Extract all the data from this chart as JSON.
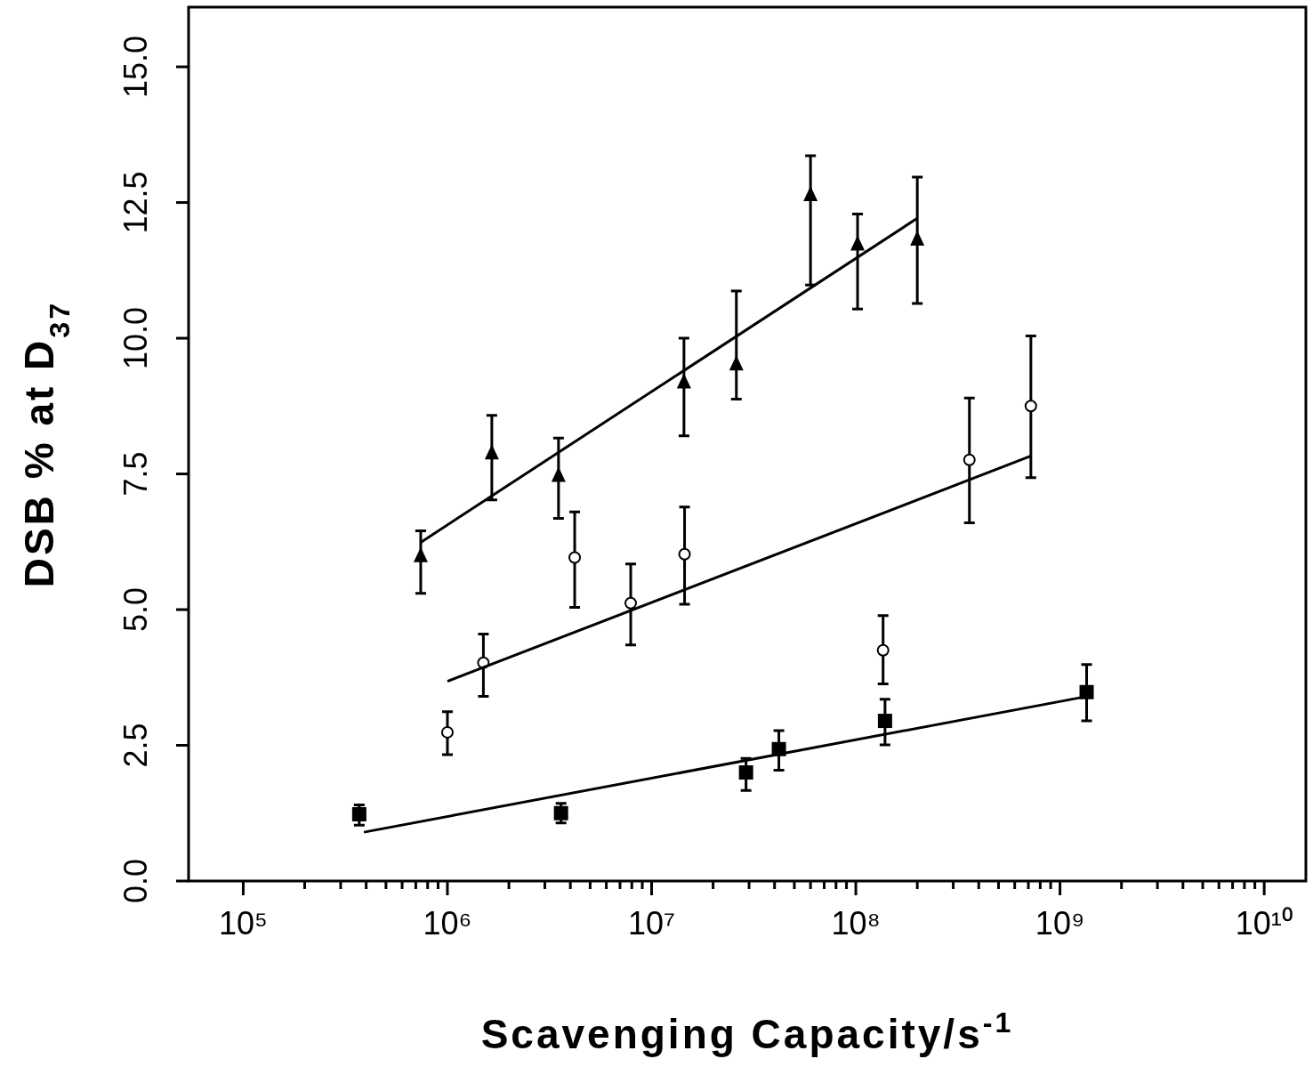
{
  "chart_data": {
    "type": "scatter",
    "xlabel": "Scavenging Capacity/s$^{-1}$",
    "ylabel": "DSB % at D$_{37}$",
    "log": "x",
    "grid": false,
    "xlim": [
      54000,
      16000000000
    ],
    "ylim": [
      0,
      16.1
    ],
    "xticks": [
      {
        "value": 100000,
        "label": "10⁵"
      },
      {
        "value": 200000,
        "label": null
      },
      {
        "value": 300000,
        "label": null
      },
      {
        "value": 400000,
        "label": null
      },
      {
        "value": 500000,
        "label": null
      },
      {
        "value": 600000,
        "label": null
      },
      {
        "value": 700000,
        "label": null
      },
      {
        "value": 800000,
        "label": null
      },
      {
        "value": 900000,
        "label": null
      },
      {
        "value": 1000000,
        "label": "10⁶"
      },
      {
        "value": 2000000,
        "label": null
      },
      {
        "value": 3000000,
        "label": null
      },
      {
        "value": 4000000,
        "label": null
      },
      {
        "value": 5000000,
        "label": null
      },
      {
        "value": 6000000,
        "label": null
      },
      {
        "value": 7000000,
        "label": null
      },
      {
        "value": 8000000,
        "label": null
      },
      {
        "value": 9000000,
        "label": null
      },
      {
        "value": 10000000,
        "label": "10⁷"
      },
      {
        "value": 20000000,
        "label": null
      },
      {
        "value": 30000000,
        "label": null
      },
      {
        "value": 40000000,
        "label": null
      },
      {
        "value": 50000000,
        "label": null
      },
      {
        "value": 60000000,
        "label": null
      },
      {
        "value": 70000000,
        "label": null
      },
      {
        "value": 80000000,
        "label": null
      },
      {
        "value": 90000000,
        "label": null
      },
      {
        "value": 100000000,
        "label": "10⁸"
      },
      {
        "value": 200000000,
        "label": null
      },
      {
        "value": 300000000,
        "label": null
      },
      {
        "value": 400000000,
        "label": null
      },
      {
        "value": 500000000,
        "label": null
      },
      {
        "value": 600000000,
        "label": null
      },
      {
        "value": 700000000,
        "label": null
      },
      {
        "value": 800000000,
        "label": null
      },
      {
        "value": 900000000,
        "label": null
      },
      {
        "value": 1000000000,
        "label": "10⁹"
      },
      {
        "value": 2000000000,
        "label": null
      },
      {
        "value": 3000000000,
        "label": null
      },
      {
        "value": 4000000000,
        "label": null
      },
      {
        "value": 5000000000,
        "label": null
      },
      {
        "value": 6000000000,
        "label": null
      },
      {
        "value": 7000000000,
        "label": null
      },
      {
        "value": 8000000000,
        "label": null
      },
      {
        "value": 9000000000,
        "label": null
      },
      {
        "value": 10000000000,
        "label": "10¹⁰"
      }
    ],
    "yticks": [
      {
        "value": 0,
        "label": "0.0"
      },
      {
        "value": 2.5,
        "label": "2.5"
      },
      {
        "value": 5,
        "label": "5.0"
      },
      {
        "value": 7.5,
        "label": "7.5"
      },
      {
        "value": 10,
        "label": "10.0"
      },
      {
        "value": 12.5,
        "label": "12.5"
      },
      {
        "value": 15,
        "label": "15.0"
      }
    ],
    "series": [
      {
        "marker": "triangle",
        "color": "#000000",
        "x": [
          740000,
          1650000,
          3500000,
          14400000,
          26000000,
          60000000,
          102000000,
          200000000
        ],
        "values": [
          5.99,
          7.88,
          7.47,
          9.19,
          9.52,
          12.64,
          11.73,
          11.82
        ],
        "errors": [
          [
            5.3,
            6.45
          ],
          [
            7.02,
            8.58
          ],
          [
            6.68,
            8.16
          ],
          [
            8.2,
            10.0
          ],
          [
            8.88,
            10.87
          ],
          [
            10.98,
            13.36
          ],
          [
            10.54,
            12.29
          ],
          [
            10.64,
            12.97
          ]
        ]
      },
      {
        "marker": "circle",
        "color": "#000000",
        "x": [
          1000000,
          1500000,
          4200000,
          7900000,
          14500000,
          136000000,
          360000000,
          720000000
        ],
        "values": [
          2.74,
          4.02,
          5.96,
          5.12,
          6.02,
          4.25,
          7.76,
          8.75
        ],
        "errors": [
          [
            2.33,
            3.12
          ],
          [
            3.4,
            4.55
          ],
          [
            5.04,
            6.8
          ],
          [
            4.35,
            5.84
          ],
          [
            5.1,
            6.89
          ],
          [
            3.63,
            4.89
          ],
          [
            6.6,
            8.9
          ],
          [
            7.43,
            10.04
          ]
        ]
      },
      {
        "marker": "square",
        "color": "#000000",
        "x": [
          370000,
          3600000,
          29000000,
          42000000,
          139000000,
          1350000000
        ],
        "values": [
          1.23,
          1.25,
          2.0,
          2.43,
          2.95,
          3.48
        ],
        "errors": [
          [
            1.03,
            1.4
          ],
          [
            1.07,
            1.43
          ],
          [
            1.67,
            2.26
          ],
          [
            2.04,
            2.77
          ],
          [
            2.51,
            3.35
          ],
          [
            2.95,
            3.99
          ]
        ]
      },
      {
        "type": "line",
        "color": "#000000",
        "x": [
          740000,
          200000000
        ],
        "values": [
          6.24,
          12.21
        ]
      },
      {
        "type": "line",
        "color": "#000000",
        "x": [
          1000000,
          720000000
        ],
        "values": [
          3.68,
          7.83
        ]
      },
      {
        "type": "line",
        "color": "#000000",
        "x": [
          390000,
          1350000000
        ],
        "values": [
          0.9,
          3.4
        ]
      }
    ]
  }
}
